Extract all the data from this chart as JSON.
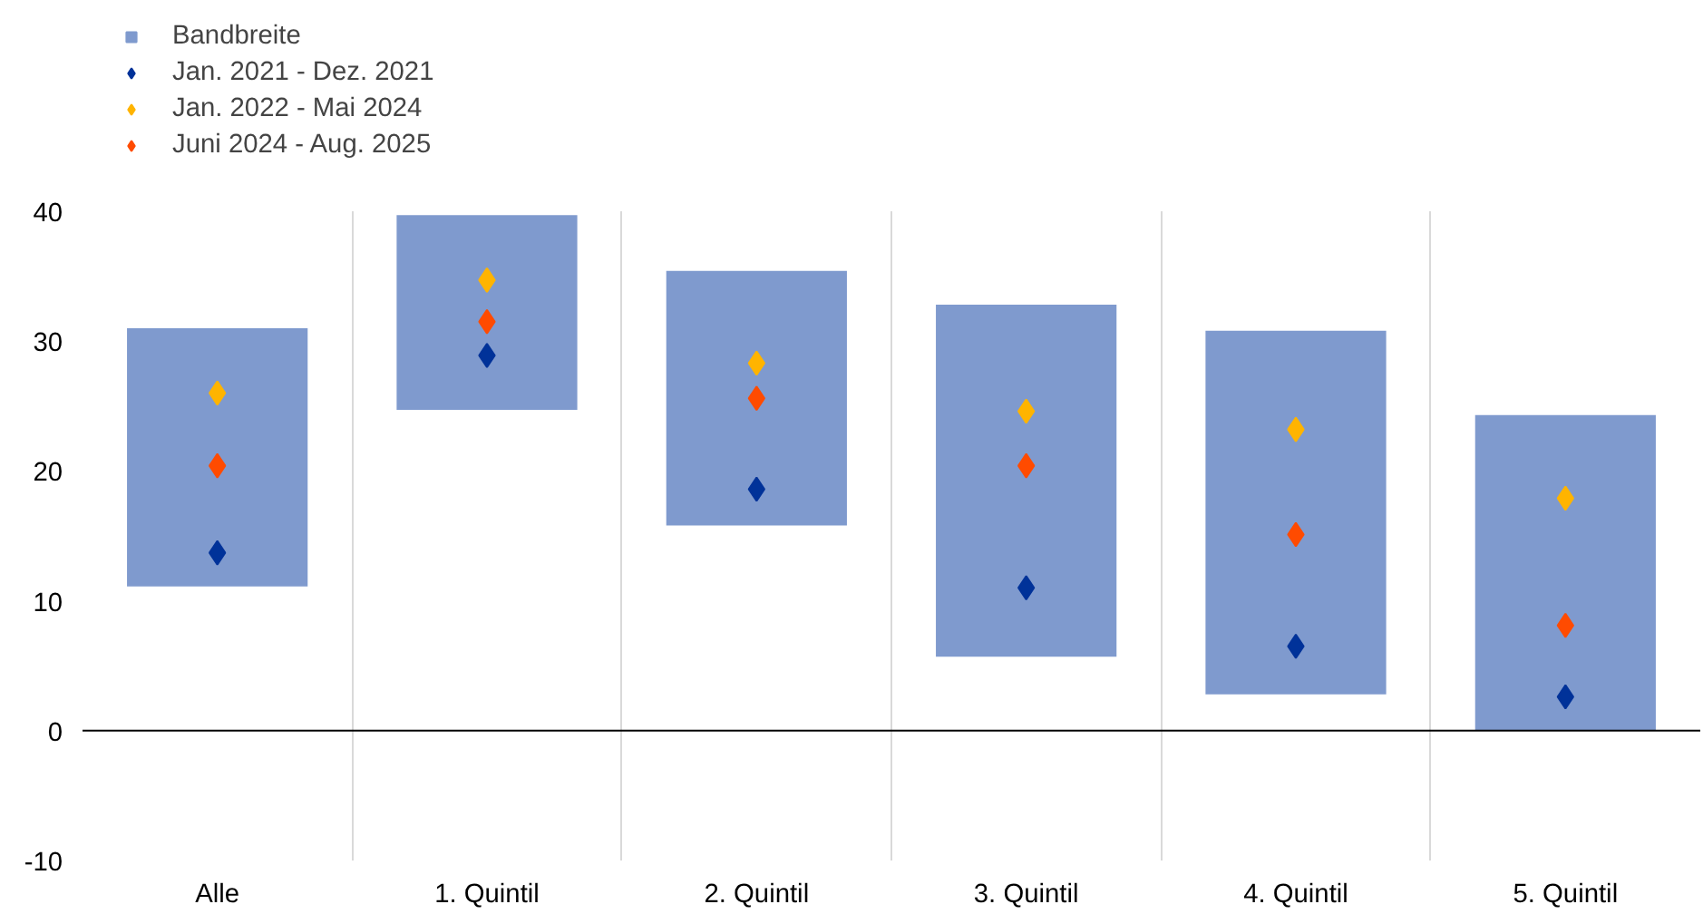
{
  "chart_data": {
    "type": "bar",
    "categories": [
      "Alle",
      "1. Quintil",
      "2. Quintil",
      "3. Quintil",
      "4. Quintil",
      "5. Quintil"
    ],
    "series": [
      {
        "name": "Bandbreite",
        "color": "#7f9ace",
        "base": [
          11.1,
          24.7,
          15.8,
          5.7,
          2.8,
          0
        ],
        "values": [
          19.9,
          15.0,
          19.6,
          27.1,
          28.0,
          24.3
        ]
      },
      {
        "name": "Jan. 2021 - Dez. 2021",
        "type": "scatter",
        "color": "#003299",
        "values": [
          13.7,
          28.9,
          18.6,
          11.0,
          6.5,
          2.6
        ]
      },
      {
        "name": "Jan. 2022 - Mai 2024",
        "type": "scatter",
        "color": "#ffb400",
        "values": [
          26.0,
          34.7,
          28.3,
          24.6,
          23.2,
          17.9
        ]
      },
      {
        "name": "Juni 2024 - Aug. 2025",
        "type": "scatter",
        "color": "#ff4b00",
        "values": [
          20.4,
          31.5,
          25.6,
          20.4,
          15.1,
          8.1
        ]
      }
    ],
    "marker": "diamond",
    "ylim": [
      -10,
      40
    ],
    "yticks": [
      -10,
      0,
      10,
      20,
      30,
      40
    ],
    "grid": "x",
    "legend": "top left",
    "ref_lines": [
      {
        "axis": "y",
        "value": 0,
        "color": "#000000"
      }
    ]
  }
}
